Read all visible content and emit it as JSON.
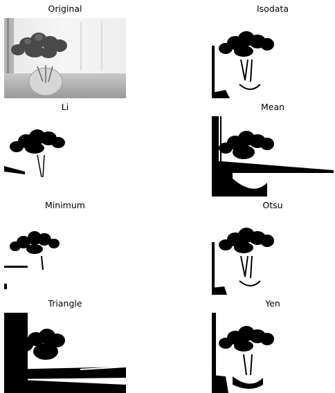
{
  "panels": [
    {
      "title": "Original",
      "kind": "gray"
    },
    {
      "title": "Isodata",
      "kind": "bw"
    },
    {
      "title": "Li",
      "kind": "bw-light"
    },
    {
      "title": "Mean",
      "kind": "bw-dark"
    },
    {
      "title": "Minimum",
      "kind": "bw-min"
    },
    {
      "title": "Otsu",
      "kind": "bw"
    },
    {
      "title": "Triangle",
      "kind": "bw-tri"
    },
    {
      "title": "Yen",
      "kind": "bw-yen"
    }
  ]
}
